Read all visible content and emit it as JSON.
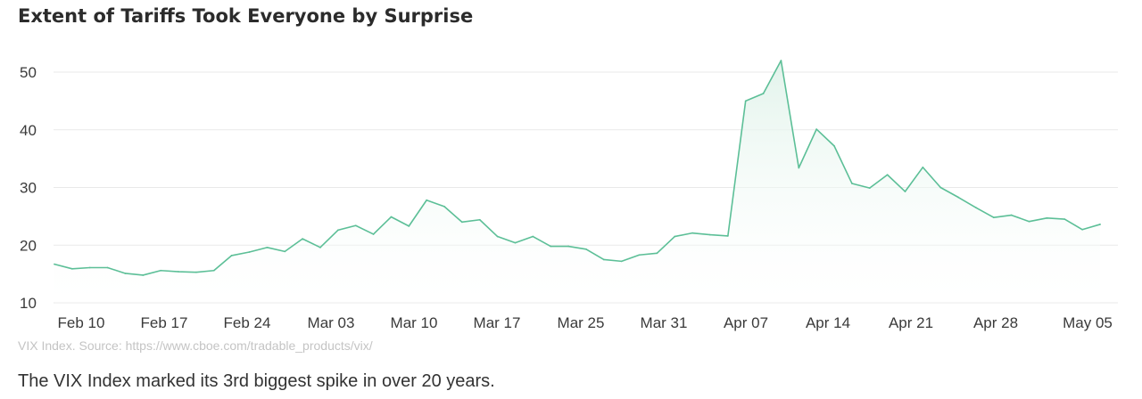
{
  "title": "Extent of Tariffs Took Everyone by Surprise",
  "source_note": "VIX Index. Source: https://www.cboe.com/tradable_products/vix/",
  "caption": "The VIX Index marked its 3rd biggest spike in over 20 years.",
  "colors": {
    "line": "#5cbf97",
    "fill_top": "#dff2e9",
    "grid": "#e9e9e9",
    "axis_text": "#3a3a3a"
  },
  "chart_data": {
    "type": "area",
    "title": "Extent of Tariffs Took Everyone by Surprise",
    "xlabel": "",
    "ylabel": "",
    "ylim": [
      10,
      50
    ],
    "yticks": [
      "10",
      "20",
      "30",
      "40",
      "50"
    ],
    "xticks": [
      "Feb 10",
      "Feb 17",
      "Feb 24",
      "Mar 03",
      "Mar 10",
      "Mar 17",
      "Mar 25",
      "Mar 31",
      "Apr 07",
      "Apr 14",
      "Apr 21",
      "Apr 28",
      "May 05"
    ],
    "grid": true,
    "series": [
      {
        "values": [
          16.7,
          15.9,
          16.1,
          16.1,
          15.1,
          14.8,
          15.6,
          15.4,
          15.3,
          15.6,
          18.2,
          18.8,
          19.6,
          18.9,
          21.1,
          19.6,
          22.6,
          23.4,
          21.9,
          24.9,
          23.3,
          27.8,
          26.7,
          24.0,
          24.4,
          21.5,
          20.4,
          21.5,
          19.8,
          19.8,
          19.3,
          17.5,
          17.2,
          18.3,
          18.6,
          21.5,
          22.1,
          21.8,
          21.6,
          45.0,
          46.3,
          52.0,
          33.4,
          40.1,
          37.2,
          30.7,
          29.9,
          32.2,
          29.3,
          33.5,
          30.0,
          28.3,
          26.5,
          24.8,
          25.2,
          24.1,
          24.7,
          24.5,
          22.7,
          23.6
        ]
      }
    ]
  }
}
